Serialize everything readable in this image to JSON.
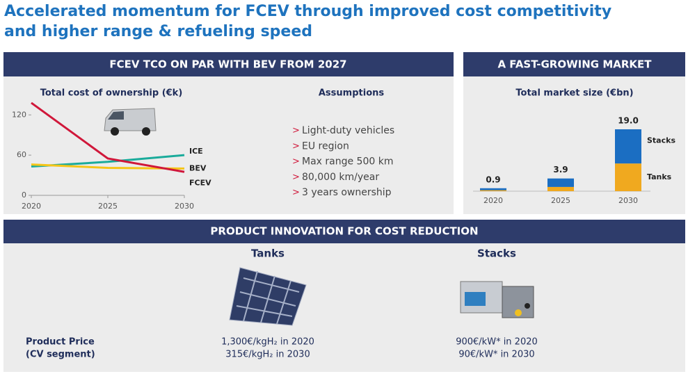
{
  "title_lines": [
    "Accelerated momentum for FCEV through improved cost competitivity",
    "and higher range & refueling speed"
  ],
  "panels": {
    "tco": "FCEV TCO ON PAR WITH BEV FROM 2027",
    "market": "A FAST-GROWING MARKET",
    "product": "PRODUCT INNOVATION FOR COST REDUCTION"
  },
  "assumptions": {
    "title": "Assumptions",
    "items": [
      "Light-duty vehicles",
      "EU region",
      "Max range 500 km",
      "80,000 km/year",
      "3 years ownership"
    ]
  },
  "chart_data": [
    {
      "type": "line",
      "title": "Total cost of ownership (€k)",
      "x": [
        2020,
        2025,
        2030
      ],
      "xlim": [
        2020,
        2030
      ],
      "xticks": [
        2020,
        2025,
        2030
      ],
      "ylim": [
        0,
        140
      ],
      "yticks": [
        0,
        60,
        120
      ],
      "series": [
        {
          "name": "ICE",
          "color": "#1aab9b",
          "values": [
            43,
            50,
            60
          ]
        },
        {
          "name": "BEV",
          "color": "#f5c518",
          "values": [
            46,
            41,
            40
          ]
        },
        {
          "name": "FCEV",
          "color": "#d0173a",
          "values": [
            138,
            55,
            35
          ]
        }
      ]
    },
    {
      "type": "stacked_bar",
      "title": "Total market size (€bn)",
      "categories": [
        "2020",
        "2025",
        "2030"
      ],
      "series": [
        {
          "name": "Tanks",
          "color": "#f0a91f",
          "values": [
            0.3,
            1.3,
            8.5
          ]
        },
        {
          "name": "Stacks",
          "color": "#1b6ec2",
          "values": [
            0.6,
            2.6,
            10.5
          ]
        }
      ],
      "totals": [
        0.9,
        3.9,
        19.0
      ],
      "total_labels": [
        "0.9",
        "3.9",
        "19.0"
      ]
    }
  ],
  "products": {
    "row_label": [
      "Product Price",
      "(CV segment)"
    ],
    "items": [
      {
        "name": "Tanks",
        "prices": [
          "1,300€/kgH₂ in 2020",
          "315€/kgH₂ in 2030"
        ]
      },
      {
        "name": "Stacks",
        "prices": [
          "900€/kW* in 2020",
          "90€/kW* in 2030"
        ]
      }
    ]
  }
}
